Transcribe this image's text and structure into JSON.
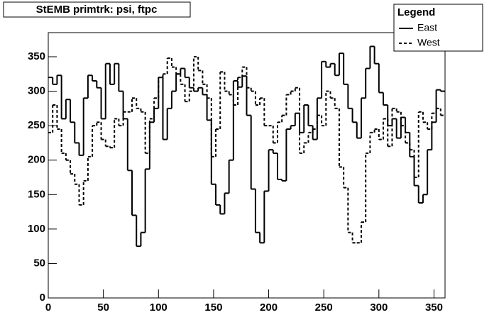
{
  "chart_data": {
    "type": "histogram",
    "title": "StEMB primtrk: psi, ftpc",
    "legend_title": "Legend",
    "legend": "top-right",
    "bins": [
      0,
      4,
      8,
      12,
      16,
      20,
      24,
      28,
      32,
      36,
      40,
      44,
      48,
      52,
      56,
      60,
      64,
      68,
      72,
      76,
      80,
      84,
      88,
      92,
      96,
      100,
      104,
      108,
      112,
      116,
      120,
      124,
      128,
      132,
      136,
      140,
      144,
      148,
      152,
      156,
      160,
      164,
      168,
      172,
      176,
      180,
      184,
      188,
      192,
      196,
      200,
      204,
      208,
      212,
      216,
      220,
      224,
      228,
      232,
      236,
      240,
      244,
      248,
      252,
      256,
      260,
      264,
      268,
      272,
      276,
      280,
      284,
      288,
      292,
      296,
      300,
      304,
      308,
      312,
      316,
      320,
      324,
      328,
      332,
      336,
      340,
      344,
      348,
      352,
      356,
      360
    ],
    "series": [
      {
        "name": "East",
        "color": "#000000",
        "dash": "solid",
        "values": [
          320,
          310,
          323,
          260,
          288,
          255,
          225,
          207,
          290,
          323,
          315,
          305,
          260,
          340,
          310,
          340,
          300,
          260,
          185,
          120,
          75,
          95,
          187,
          255,
          275,
          320,
          230,
          275,
          300,
          325,
          333,
          320,
          305,
          300,
          305,
          295,
          258,
          165,
          135,
          122,
          152,
          200,
          315,
          306,
          322,
          265,
          158,
          95,
          80,
          155,
          215,
          210,
          172,
          170,
          245,
          250,
          268,
          240,
          280,
          250,
          230,
          290,
          343,
          335,
          340,
          323,
          355,
          310,
          275,
          255,
          232,
          290,
          333,
          365,
          340,
          298,
          280,
          250,
          260,
          232,
          262,
          240,
          205,
          163,
          138,
          150,
          215,
          255,
          302,
          300
        ]
      },
      {
        "name": "West",
        "color": "#000000",
        "dash": "dashed",
        "values": [
          240,
          280,
          245,
          210,
          200,
          180,
          165,
          135,
          170,
          205,
          250,
          255,
          230,
          220,
          218,
          260,
          250,
          270,
          270,
          290,
          275,
          270,
          210,
          260,
          290,
          320,
          325,
          348,
          335,
          325,
          310,
          285,
          300,
          350,
          330,
          310,
          290,
          205,
          245,
          328,
          300,
          295,
          280,
          320,
          335,
          305,
          300,
          280,
          290,
          250,
          250,
          225,
          255,
          265,
          295,
          300,
          305,
          210,
          225,
          240,
          245,
          265,
          250,
          300,
          290,
          275,
          190,
          160,
          95,
          80,
          80,
          110,
          210,
          240,
          245,
          230,
          260,
          220,
          275,
          270,
          250,
          225,
          215,
          175,
          270,
          255,
          245,
          268,
          275,
          265
        ]
      }
    ],
    "xlim": [
      0,
      360
    ],
    "xticks": [
      0,
      50,
      100,
      150,
      200,
      250,
      300,
      350
    ],
    "ylim": [
      0,
      385
    ],
    "yticks": [
      0,
      50,
      100,
      150,
      200,
      250,
      300,
      350
    ]
  }
}
